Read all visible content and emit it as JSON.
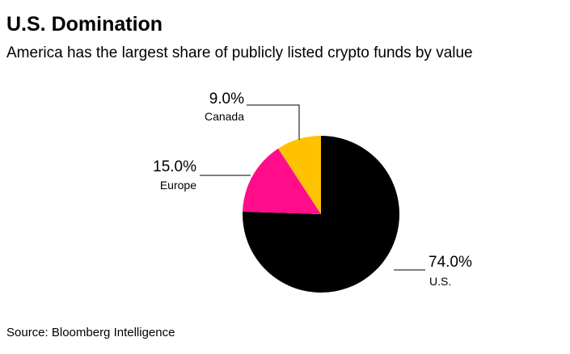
{
  "chart_data": {
    "type": "pie",
    "title": "U.S. Domination",
    "subtitle": "America has the largest share of publicly listed crypto funds by value",
    "categories": [
      "U.S.",
      "Europe",
      "Canada"
    ],
    "values": [
      74.0,
      15.0,
      9.0
    ],
    "value_labels": [
      "74.0%",
      "15.0%",
      "9.0%"
    ],
    "colors": [
      "#000000",
      "#ff0d8a",
      "#ffc200"
    ],
    "source": "Source: Bloomberg Intelligence"
  }
}
